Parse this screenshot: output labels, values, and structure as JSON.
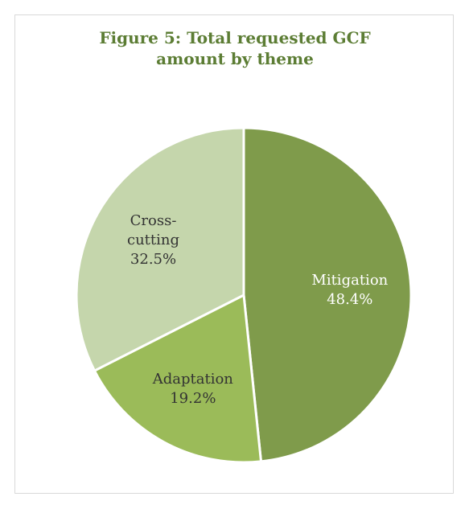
{
  "chart_data": {
    "type": "pie",
    "title_lines": [
      "Figure 5:  Total requested GCF",
      "amount by theme"
    ],
    "slices": [
      {
        "label_lines": [
          "Mitigation"
        ],
        "value": 48.4,
        "value_label": "48.4%",
        "color": "#7f9b4b",
        "text_color": "#ffffff"
      },
      {
        "label_lines": [
          "Adaptation"
        ],
        "value": 19.2,
        "value_label": "19.2%",
        "color": "#9bbb59",
        "text_color": "#333333"
      },
      {
        "label_lines": [
          "Cross-",
          "cutting"
        ],
        "value": 32.5,
        "value_label": "32.5%",
        "color": "#c5d6ac",
        "text_color": "#333333"
      }
    ],
    "legend": false,
    "start": "12 o'clock",
    "direction": "clockwise"
  }
}
